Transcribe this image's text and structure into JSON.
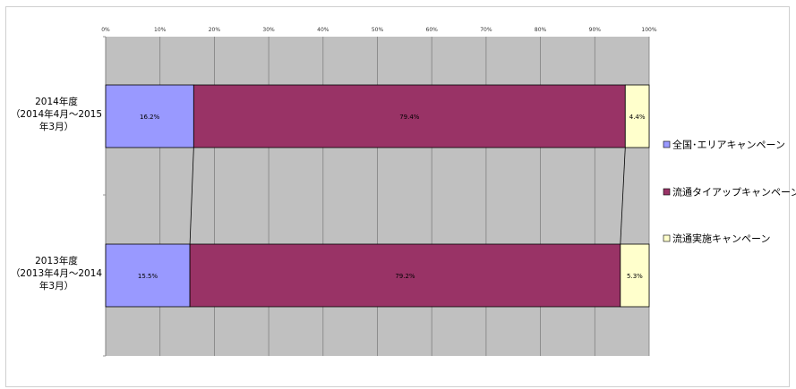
{
  "chart_data": {
    "type": "bar",
    "orientation": "horizontal",
    "stacked": "percent",
    "categories": [
      [
        "2014年度",
        "（2014年4月～2015",
        "年3月）"
      ],
      [
        "2013年度",
        "（2013年4月～2014",
        "年3月）"
      ]
    ],
    "series": [
      {
        "name": "全国･エリアキャンペーン",
        "values": [
          16.2,
          15.5
        ],
        "labels": [
          "16.2%",
          "15.5%"
        ],
        "color": "#9999ff"
      },
      {
        "name": "流通タイアップキャンペーン",
        "values": [
          79.4,
          79.2
        ],
        "labels": [
          "79.4%",
          "79.2%"
        ],
        "color": "#993366"
      },
      {
        "name": "流通実施キャンペーン",
        "values": [
          4.4,
          5.3
        ],
        "labels": [
          "4.4%",
          "5.3%"
        ],
        "color": "#ffffcc"
      }
    ],
    "x_ticks": [
      "0%",
      "10%",
      "20%",
      "30%",
      "40%",
      "50%",
      "60%",
      "70%",
      "80%",
      "90%",
      "100%"
    ],
    "xlim": [
      0,
      100
    ],
    "grid": true,
    "plot_background": "#c0c0c0",
    "series_lines": true,
    "legend_position": "right"
  }
}
